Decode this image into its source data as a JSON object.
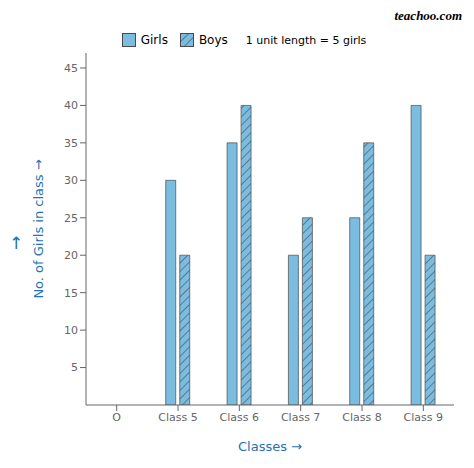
{
  "chart_data": {
    "type": "bar",
    "categories": [
      "O",
      "Class 5",
      "Class 6",
      "Class 7",
      "Class 8",
      "Class 9"
    ],
    "series": [
      {
        "name": "Girls",
        "color": "#7abde0",
        "values": [
          null,
          30,
          35,
          20,
          25,
          40
        ]
      },
      {
        "name": "Boys",
        "color": "#7abde0",
        "values": [
          null,
          20,
          40,
          25,
          35,
          20
        ]
      }
    ],
    "x_label": "Classes  →",
    "y_label": "No. of Girls in class  →",
    "ylim": [
      0,
      47
    ],
    "yticks": [
      5,
      10,
      15,
      20,
      25,
      30,
      35,
      40,
      45
    ],
    "grid": false,
    "legend": "top",
    "annotations": [
      "↑",
      "1 unit length = 5 girls",
      "teachoo.com"
    ]
  }
}
